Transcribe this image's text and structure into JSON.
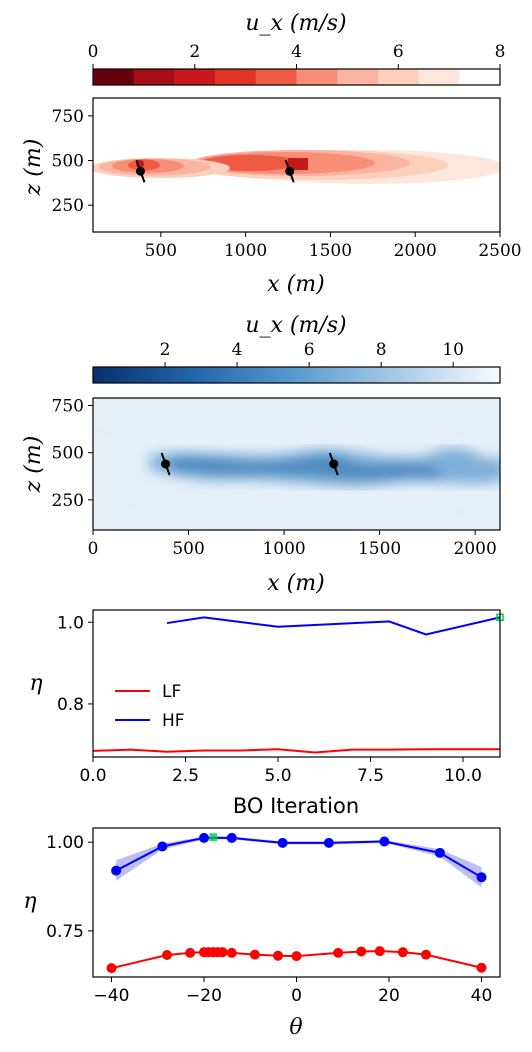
{
  "chart_data": [
    {
      "type": "colorbar",
      "label": "u_x (m/s)",
      "colormap": "Reds_r",
      "range": [
        0,
        8
      ],
      "ticks": [
        0,
        2,
        4,
        6,
        8
      ],
      "levels": 10
    },
    {
      "type": "heatmap",
      "xlabel": "x (m)",
      "ylabel": "z (m)",
      "xlim": [
        100,
        2500
      ],
      "ylim": [
        100,
        850
      ],
      "xticks": [
        500,
        1000,
        1500,
        2000,
        2500
      ],
      "yticks": [
        250,
        500,
        750
      ],
      "turbines": [
        {
          "x": 380,
          "z": 440
        },
        {
          "x": 1260,
          "z": 440
        }
      ],
      "field": "low-fidelity wake velocity deficit"
    },
    {
      "type": "colorbar",
      "label": "u_x (m/s)",
      "colormap": "Blues_r",
      "range": [
        0,
        11.3
      ],
      "ticks": [
        2,
        4,
        6,
        8,
        10
      ]
    },
    {
      "type": "heatmap",
      "xlabel": "x (m)",
      "ylabel": "z (m)",
      "xlim": [
        0,
        2130
      ],
      "ylim": [
        90,
        790
      ],
      "xticks": [
        0,
        500,
        1000,
        1500,
        2000
      ],
      "yticks": [
        250,
        500,
        750
      ],
      "turbines": [
        {
          "x": 380,
          "z": 440
        },
        {
          "x": 1260,
          "z": 440
        }
      ],
      "field": "high-fidelity turbulent velocity field"
    },
    {
      "type": "line",
      "xlabel": "BO Iteration",
      "ylabel": "η",
      "xlim": [
        0,
        11
      ],
      "ylim": [
        0.67,
        1.03
      ],
      "xticks": [
        0.0,
        2.5,
        5.0,
        7.5,
        10.0
      ],
      "yticks": [
        0.8,
        1.0
      ],
      "legend_position": "center-left",
      "series": [
        {
          "name": "LF",
          "color": "#ff0000",
          "x": [
            0,
            1,
            2,
            3,
            4,
            5,
            6,
            7,
            8,
            9,
            10,
            11
          ],
          "values": [
            0.685,
            0.688,
            0.683,
            0.686,
            0.686,
            0.689,
            0.681,
            0.688,
            0.688,
            0.689,
            0.689,
            0.689
          ]
        },
        {
          "name": "HF",
          "color": "#0000ff",
          "x": [
            2,
            3,
            5,
            8,
            9,
            11
          ],
          "values": [
            0.998,
            1.012,
            0.989,
            1.002,
            0.97,
            1.012
          ]
        }
      ],
      "best_marker": {
        "x": 11,
        "y": 1.012,
        "color": "#00cc44"
      }
    },
    {
      "type": "line",
      "xlabel": "θ",
      "ylabel": "η",
      "xlim": [
        -44,
        44
      ],
      "ylim": [
        0.62,
        1.04
      ],
      "xticks": [
        -40,
        -20,
        0,
        20,
        40
      ],
      "yticks": [
        0.75,
        1.0
      ],
      "series": [
        {
          "name": "",
          "color": "#ff0000",
          "x": [
            -40,
            -28,
            -23,
            -20,
            -19,
            -18,
            -17,
            -16,
            -14,
            -9,
            -4,
            0,
            9,
            14,
            18,
            23,
            28,
            40
          ],
          "values": [
            0.645,
            0.682,
            0.688,
            0.69,
            0.69,
            0.69,
            0.69,
            0.69,
            0.688,
            0.683,
            0.68,
            0.679,
            0.688,
            0.692,
            0.693,
            0.69,
            0.683,
            0.646
          ]
        },
        {
          "name": "",
          "color": "#0000ff",
          "x": [
            -39,
            -29,
            -20,
            -14,
            -3,
            7,
            19,
            31,
            40
          ],
          "values": [
            0.92,
            0.988,
            1.012,
            1.012,
            0.998,
            0.998,
            1.002,
            0.97,
            0.901
          ]
        }
      ],
      "uncertainty_band_color": "#8888ee",
      "best_marker": {
        "x": -18,
        "y": 1.014,
        "color": "#00cc44"
      }
    }
  ]
}
